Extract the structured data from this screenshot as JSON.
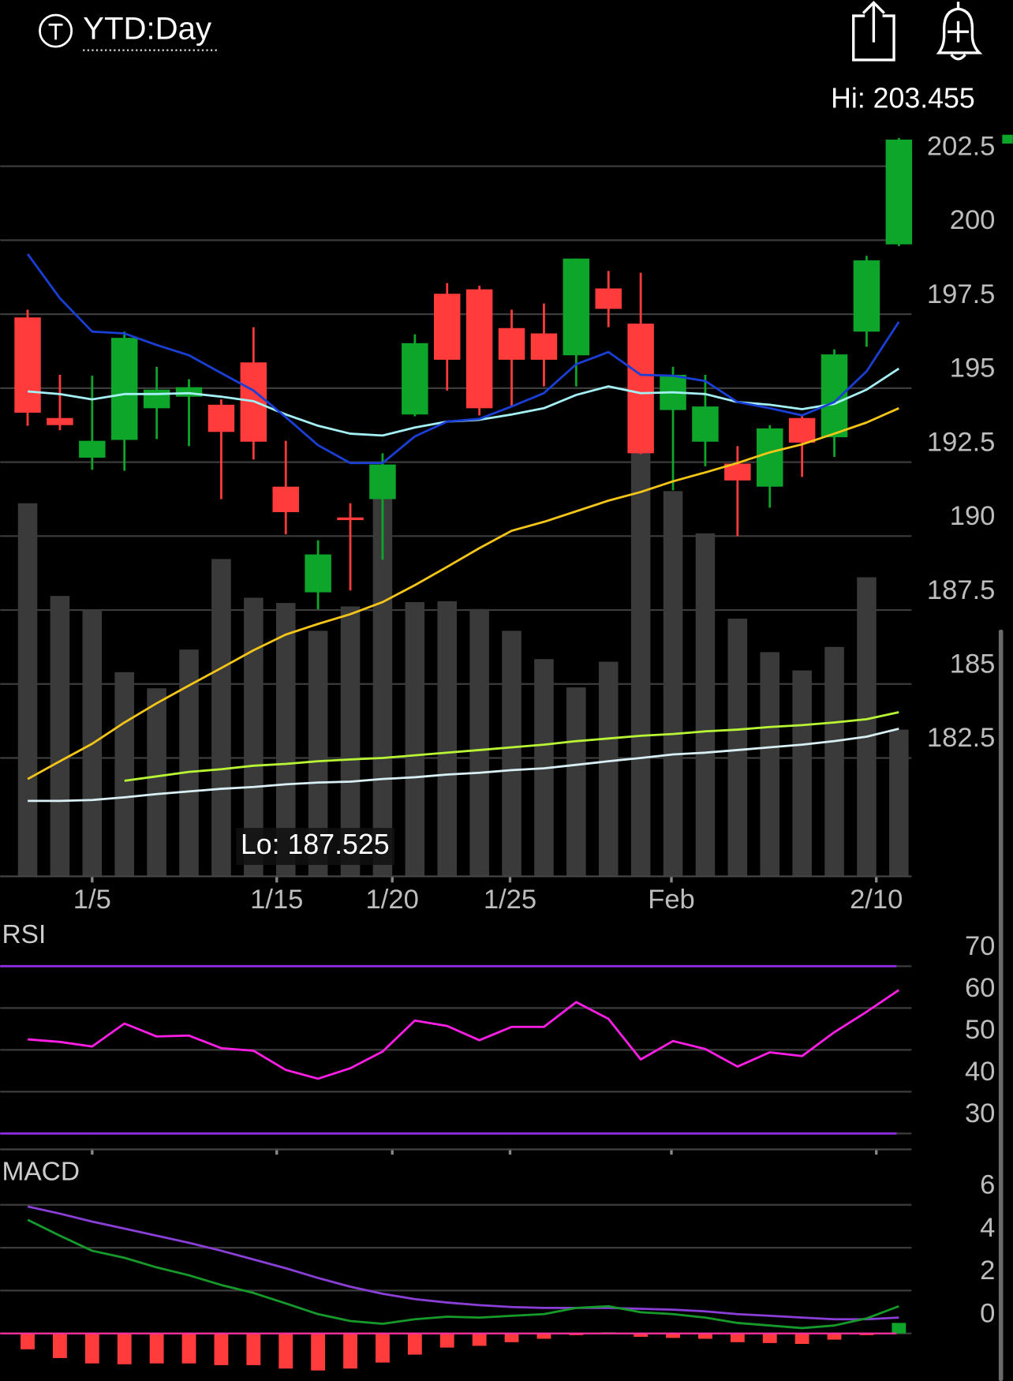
{
  "header": {
    "title": "YTD:Day"
  },
  "chart_data": [
    {
      "type": "candlestick",
      "annotations": [
        "Hi: 203.455",
        "Lo: 187.525"
      ],
      "xlim": [
        -0.85,
        30.53
      ],
      "xticks": [
        {
          "value": 2,
          "label": "1/5"
        },
        {
          "value": 7.72,
          "label": "1/15"
        },
        {
          "value": 11.3,
          "label": "1/20"
        },
        {
          "value": 14.95,
          "label": "1/25"
        },
        {
          "value": 19.95,
          "label": "Feb"
        },
        {
          "value": 26.3,
          "label": "2/10"
        }
      ],
      "ylim": [
        178.5,
        204.1
      ],
      "yticks": [
        182.5,
        185,
        187.5,
        190,
        192.5,
        195,
        197.5,
        200,
        202.5
      ],
      "grid": true,
      "up_color": "#0da62b",
      "down_color": "#ff3b3b",
      "candles": {
        "open": [
          197.39,
          193.99,
          192.65,
          193.25,
          194.32,
          194.71,
          194.44,
          195.87,
          191.67,
          188.1,
          190.63,
          191.25,
          194.11,
          198.19,
          198.34,
          197.03,
          196.85,
          196.11,
          198.37,
          197.18,
          194.26,
          193.19,
          192.45,
          191.67,
          193.99,
          193.34,
          196.91,
          199.86
        ],
        "high": [
          197.65,
          195.45,
          195.42,
          196.91,
          195.72,
          195.3,
          194.62,
          197.06,
          193.22,
          189.86,
          191.11,
          192.8,
          196.82,
          198.55,
          198.46,
          197.65,
          197.86,
          199.38,
          198.96,
          198.9,
          195.72,
          195.45,
          193.04,
          193.75,
          194.05,
          196.31,
          199.47,
          203.455
        ],
        "low": [
          193.73,
          193.58,
          192.24,
          192.21,
          193.28,
          193.04,
          191.25,
          192.59,
          190.06,
          187.525,
          188.16,
          189.2,
          194.05,
          194.92,
          194.08,
          194.41,
          195.06,
          195.06,
          197.06,
          192.77,
          191.55,
          192.36,
          190.0,
          190.96,
          192.0,
          192.68,
          196.4,
          199.8
        ],
        "close": [
          194.17,
          193.75,
          193.22,
          196.7,
          194.95,
          195.03,
          193.52,
          193.19,
          190.81,
          189.38,
          190.54,
          192.42,
          196.52,
          195.96,
          194.32,
          195.96,
          195.96,
          199.38,
          197.68,
          192.8,
          195.45,
          194.38,
          191.88,
          193.64,
          193.16,
          196.14,
          199.32,
          203.4
        ]
      },
      "y2lim": [
        0,
        174
      ],
      "volume": {
        "color": "#3a3a3a",
        "values": [
          85.7,
          64.4,
          61.2,
          46.9,
          43.2,
          52.1,
          72.9,
          64.0,
          62.8,
          56.4,
          62.0,
          90.9,
          63.0,
          63.2,
          61.4,
          56.4,
          49.9,
          43.4,
          49.3,
          99.0,
          88.5,
          78.8,
          59.2,
          51.5,
          47.3,
          52.7,
          68.7,
          33.7
        ]
      },
      "series": [
        {
          "color": "#d8f0f5",
          "values": [
            181.05,
            181.05,
            181.08,
            181.17,
            181.28,
            181.37,
            181.46,
            181.52,
            181.61,
            181.67,
            181.7,
            181.79,
            181.85,
            181.94,
            182.0,
            182.09,
            182.15,
            182.27,
            182.39,
            182.5,
            182.62,
            182.68,
            182.77,
            182.86,
            182.95,
            183.07,
            183.22,
            183.49
          ]
        },
        {
          "color": "#b8f534",
          "values": [
            null,
            null,
            null,
            181.73,
            181.88,
            182.03,
            182.12,
            182.24,
            182.3,
            182.39,
            182.45,
            182.5,
            182.59,
            182.68,
            182.77,
            182.86,
            182.95,
            183.07,
            183.16,
            183.25,
            183.31,
            183.4,
            183.46,
            183.55,
            183.61,
            183.7,
            183.81,
            184.05
          ]
        },
        {
          "color": "#f5c518",
          "values": [
            181.79,
            182.39,
            182.98,
            183.7,
            184.35,
            184.95,
            185.54,
            186.14,
            186.67,
            187.03,
            187.36,
            187.77,
            188.34,
            188.96,
            189.59,
            190.18,
            190.48,
            190.84,
            191.2,
            191.49,
            191.85,
            192.15,
            192.47,
            192.83,
            193.1,
            193.46,
            193.84,
            194.32
          ]
        },
        {
          "color": "#a5f0f5",
          "values": [
            194.89,
            194.8,
            194.62,
            194.8,
            194.8,
            194.83,
            194.71,
            194.56,
            194.11,
            193.73,
            193.46,
            193.4,
            193.67,
            193.87,
            193.93,
            194.11,
            194.32,
            194.77,
            195.06,
            194.83,
            194.86,
            194.8,
            194.53,
            194.44,
            194.29,
            194.47,
            194.95,
            195.66
          ]
        },
        {
          "color": "#1a3fd6",
          "values": [
            199.53,
            198.04,
            196.91,
            196.85,
            196.46,
            196.11,
            195.51,
            194.92,
            194.02,
            193.07,
            192.47,
            192.47,
            193.37,
            193.87,
            193.96,
            194.38,
            194.83,
            195.81,
            196.22,
            195.45,
            195.42,
            195.24,
            194.53,
            194.32,
            194.08,
            194.53,
            195.57,
            197.24
          ]
        }
      ]
    },
    {
      "type": "line",
      "title": "RSI",
      "ylim": [
        26,
        80
      ],
      "yticks": [
        30,
        40,
        50,
        60,
        70
      ],
      "grid": true,
      "levels": [
        70,
        30
      ],
      "level_color": "#8e2de2",
      "series": [
        {
          "color": "#ff1ee6",
          "values": [
            52.5,
            51.9,
            50.8,
            56.3,
            53.2,
            53.4,
            50.4,
            49.8,
            45.2,
            43.1,
            45.6,
            49.6,
            57.0,
            55.7,
            52.3,
            55.5,
            55.5,
            61.4,
            57.4,
            47.7,
            52.1,
            50.2,
            46.0,
            49.4,
            48.5,
            54.2,
            59.1,
            64.3
          ]
        }
      ]
    },
    {
      "type": "macd",
      "title": "MACD",
      "ylim": [
        -2.2,
        8.4
      ],
      "yticks": [
        0,
        2,
        4,
        6
      ],
      "grid": true,
      "zero_line_color": "#ff2fa0",
      "up_color": "#0da62b",
      "down_color": "#ff3b3b",
      "histogram": [
        -0.74,
        -1.15,
        -1.4,
        -1.44,
        -1.4,
        -1.4,
        -1.48,
        -1.48,
        -1.64,
        -1.73,
        -1.64,
        -1.36,
        -0.99,
        -0.66,
        -0.58,
        -0.41,
        -0.25,
        -0.08,
        0.05,
        -0.16,
        -0.21,
        -0.25,
        -0.41,
        -0.45,
        -0.49,
        -0.29,
        -0.08,
        0.49
      ],
      "series": [
        {
          "color": "#8a3fd6",
          "values": [
            5.92,
            5.59,
            5.22,
            4.89,
            4.56,
            4.23,
            3.86,
            3.45,
            3.04,
            2.59,
            2.18,
            1.85,
            1.6,
            1.44,
            1.32,
            1.23,
            1.19,
            1.19,
            1.19,
            1.15,
            1.11,
            1.03,
            0.9,
            0.82,
            0.74,
            0.66,
            0.66,
            0.74
          ]
        },
        {
          "color": "#169b2a",
          "values": [
            5.3,
            4.56,
            3.86,
            3.53,
            3.08,
            2.71,
            2.26,
            1.89,
            1.4,
            0.9,
            0.58,
            0.45,
            0.66,
            0.78,
            0.74,
            0.82,
            0.9,
            1.19,
            1.27,
            0.99,
            0.9,
            0.74,
            0.49,
            0.37,
            0.25,
            0.37,
            0.7,
            1.27
          ]
        }
      ]
    }
  ]
}
